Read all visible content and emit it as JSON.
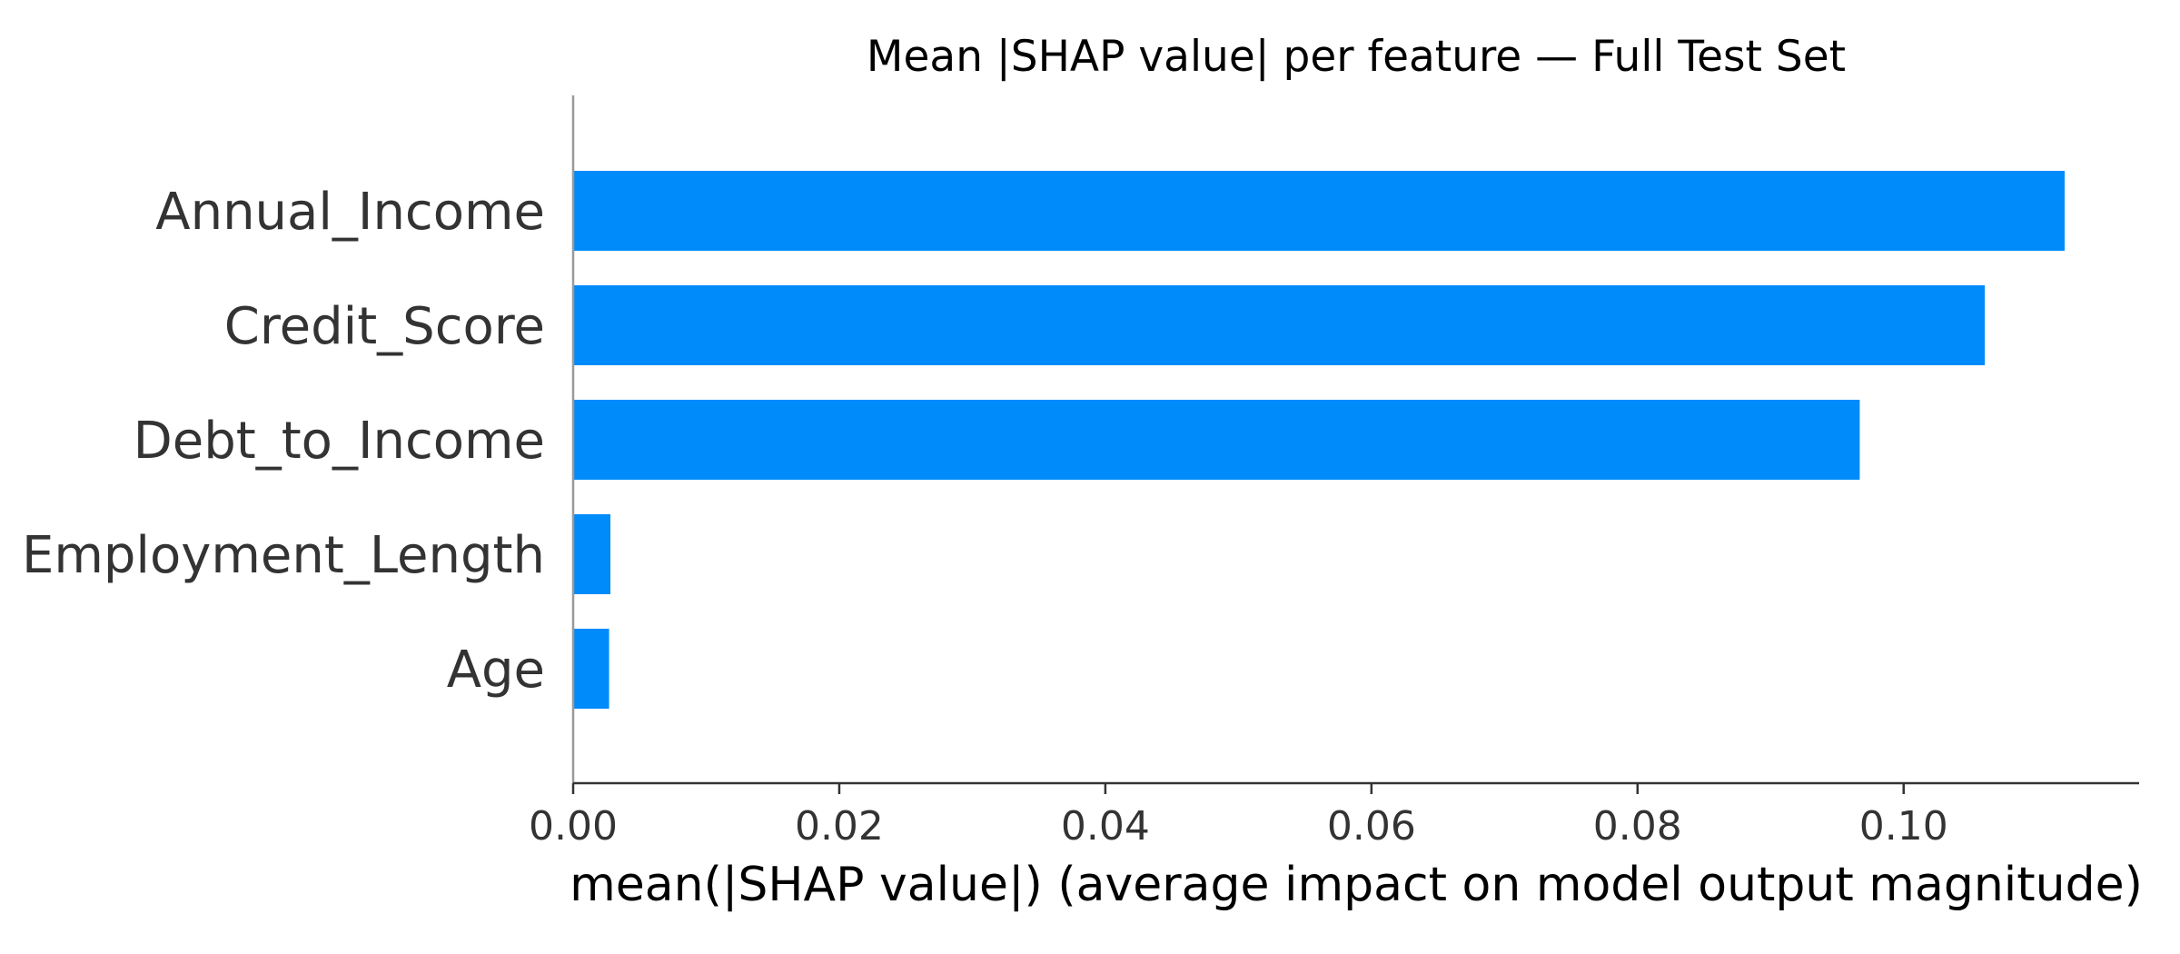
{
  "chart_data": {
    "type": "bar",
    "orientation": "horizontal",
    "title": "Mean |SHAP value| per feature — Full Test Set",
    "xlabel": "mean(|SHAP value|) (average impact on model output magnitude)",
    "ylabel": "",
    "categories": [
      "Annual_Income",
      "Credit_Score",
      "Debt_to_Income",
      "Employment_Length",
      "Age"
    ],
    "values": [
      0.1121,
      0.1061,
      0.0967,
      0.0028,
      0.0027
    ],
    "xlim": [
      0,
      0.1177
    ],
    "xticks": [
      0.0,
      0.02,
      0.04,
      0.06,
      0.08,
      0.1
    ],
    "xtick_labels": [
      "0.00",
      "0.02",
      "0.04",
      "0.06",
      "0.08",
      "0.10"
    ],
    "bar_color": "#008bfb",
    "grid": false,
    "legend": "none"
  }
}
